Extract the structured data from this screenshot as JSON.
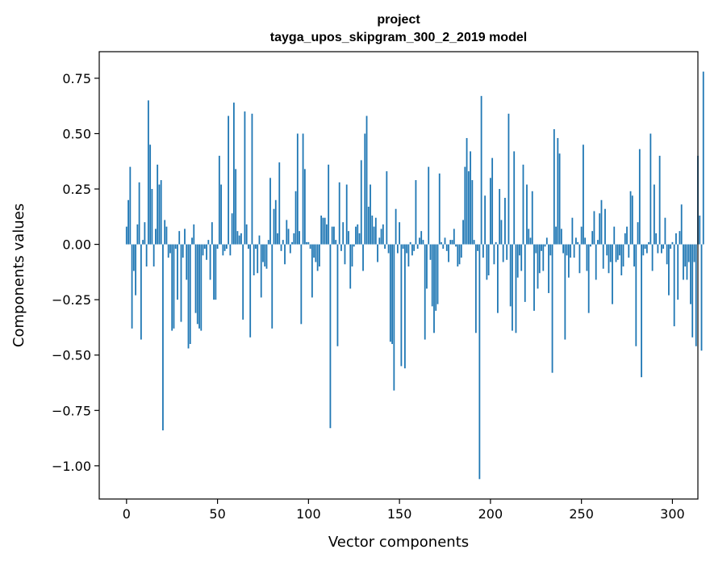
{
  "chart_data": {
    "type": "bar",
    "title_line1": "project",
    "title_line2": "tayga_upos_skipgram_300_2_2019 model",
    "xlabel": "Vector components",
    "ylabel": "Components values",
    "xlim": [
      -15,
      314
    ],
    "ylim": [
      -1.15,
      0.87
    ],
    "xticks": [
      0,
      50,
      100,
      150,
      200,
      250,
      300
    ],
    "xtick_labels": [
      "0",
      "50",
      "100",
      "150",
      "200",
      "250",
      "300"
    ],
    "yticks": [
      -1.0,
      -0.75,
      -0.5,
      -0.25,
      0.0,
      0.25,
      0.5,
      0.75
    ],
    "ytick_labels": [
      "−1.00",
      "−0.75",
      "−0.50",
      "−0.25",
      "0.00",
      "0.25",
      "0.50",
      "0.75"
    ],
    "bar_color": "#1f77b4",
    "grid": false,
    "values": [
      0.08,
      0.2,
      0.35,
      -0.38,
      -0.12,
      -0.23,
      0.09,
      0.28,
      -0.43,
      0.02,
      0.1,
      -0.1,
      0.65,
      0.45,
      0.25,
      -0.1,
      0.07,
      0.36,
      0.27,
      0.29,
      -0.84,
      0.11,
      0.08,
      -0.06,
      -0.04,
      -0.39,
      -0.38,
      -0.02,
      -0.25,
      0.06,
      -0.35,
      -0.06,
      0.07,
      -0.16,
      -0.47,
      -0.45,
      0.03,
      0.09,
      -0.31,
      -0.36,
      -0.38,
      -0.39,
      -0.05,
      -0.02,
      -0.07,
      0.02,
      -0.16,
      0.1,
      -0.25,
      -0.25,
      -0.02,
      0.4,
      0.27,
      -0.05,
      -0.03,
      -0.02,
      0.58,
      -0.05,
      0.14,
      0.64,
      0.34,
      0.06,
      0.04,
      0.05,
      -0.34,
      0.6,
      0.09,
      -0.02,
      -0.42,
      0.59,
      -0.14,
      -0.02,
      -0.13,
      0.04,
      -0.24,
      -0.08,
      -0.1,
      -0.11,
      0.02,
      0.3,
      -0.38,
      0.16,
      0.2,
      0.05,
      0.37,
      -0.03,
      0.02,
      -0.09,
      0.11,
      0.07,
      -0.04,
      0.01,
      0.05,
      0.24,
      0.5,
      0.06,
      -0.36,
      0.5,
      0.34,
      0.01,
      0.01,
      -0.02,
      -0.24,
      -0.06,
      -0.08,
      -0.12,
      -0.1,
      0.13,
      0.12,
      0.12,
      0.09,
      0.36,
      -0.83,
      0.08,
      0.08,
      0.02,
      -0.46,
      0.28,
      -0.03,
      0.1,
      -0.09,
      0.27,
      0.06,
      -0.2,
      -0.1,
      -0.01,
      0.08,
      0.09,
      0.05,
      0.38,
      -0.12,
      0.5,
      0.58,
      0.17,
      0.27,
      0.13,
      0.08,
      0.12,
      -0.08,
      0.03,
      0.07,
      0.09,
      -0.02,
      0.33,
      -0.04,
      -0.44,
      -0.45,
      -0.66,
      0.16,
      -0.04,
      0.1,
      -0.55,
      -0.02,
      -0.56,
      -0.04,
      -0.1,
      0.01,
      -0.05,
      -0.03,
      0.29,
      -0.02,
      0.03,
      0.06,
      0.02,
      -0.43,
      -0.2,
      0.35,
      -0.07,
      -0.28,
      -0.4,
      -0.3,
      -0.27,
      0.32,
      0.01,
      -0.02,
      0.03,
      -0.03,
      -0.08,
      0.02,
      0.02,
      0.07,
      -0.01,
      -0.1,
      -0.09,
      -0.06,
      0.11,
      0.35,
      0.48,
      0.33,
      0.42,
      0.29,
      0.02,
      -0.4,
      -0.03,
      -1.06,
      0.67,
      -0.06,
      0.22,
      -0.16,
      -0.14,
      0.3,
      0.39,
      -0.09,
      0.01,
      -0.31,
      0.25,
      0.11,
      -0.08,
      0.21,
      -0.07,
      0.59,
      -0.28,
      -0.39,
      0.42,
      -0.4,
      -0.15,
      -0.05,
      -0.12,
      0.36,
      -0.26,
      0.27,
      0.07,
      0.03,
      0.24,
      -0.3,
      -0.04,
      -0.2,
      -0.13,
      -0.03,
      -0.12,
      -0.01,
      0.03,
      -0.22,
      -0.05,
      -0.58,
      0.52,
      0.08,
      0.48,
      0.41,
      0.07,
      -0.04,
      -0.43,
      -0.05,
      -0.15,
      -0.06,
      0.12,
      -0.06,
      0.03,
      0.01,
      -0.13,
      0.08,
      0.45,
      0.03,
      -0.12,
      -0.31,
      -0.01,
      0.06,
      0.15,
      -0.16,
      0.02,
      0.14,
      0.2,
      -0.11,
      0.16,
      -0.05,
      -0.13,
      -0.08,
      -0.27,
      0.08,
      -0.08,
      -0.07,
      -0.05,
      -0.14,
      -0.1,
      0.05,
      0.08,
      -0.06,
      0.24,
      0.22,
      -0.1,
      -0.46,
      0.1,
      0.43,
      -0.6,
      -0.05,
      -0.02,
      -0.04,
      0.01,
      0.5,
      -0.12,
      0.27,
      0.05,
      -0.04,
      0.4,
      -0.04,
      -0.02,
      0.12,
      -0.09,
      -0.23,
      -0.02,
      0.01,
      -0.37,
      0.05,
      -0.25,
      0.06,
      0.18,
      -0.16,
      -0.1,
      -0.16,
      -0.08,
      -0.27,
      -0.42,
      -0.08,
      -0.46,
      0.4,
      0.13,
      -0.48,
      0.78
    ]
  }
}
